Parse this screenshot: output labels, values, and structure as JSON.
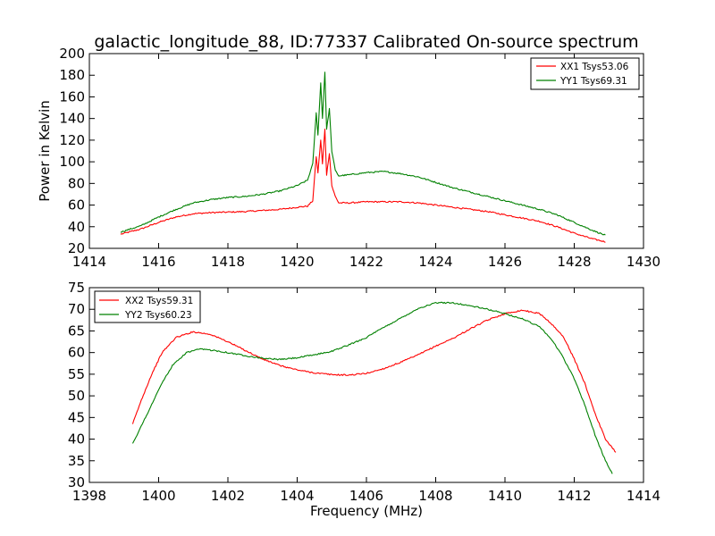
{
  "title": "galactic_longitude_88, ID:77337 Calibrated On-source spectrum",
  "chart_data": [
    {
      "type": "line",
      "ylabel": "Power in Kelvin",
      "xlabel": "",
      "xlim": [
        1414,
        1430
      ],
      "ylim": [
        20,
        200
      ],
      "xticks": [
        1414,
        1416,
        1418,
        1420,
        1422,
        1424,
        1426,
        1428,
        1430
      ],
      "yticks": [
        20,
        40,
        60,
        80,
        100,
        120,
        140,
        160,
        180,
        200
      ],
      "grid": false,
      "legend": "top-right",
      "series": [
        {
          "name": "XX1 Tsys53.06",
          "color": "#ff0000",
          "points": [
            [
              1414.9,
              33
            ],
            [
              1415.5,
              38
            ],
            [
              1416,
              44
            ],
            [
              1416.5,
              49
            ],
            [
              1417,
              52
            ],
            [
              1417.5,
              53
            ],
            [
              1418,
              53.5
            ],
            [
              1418.5,
              54
            ],
            [
              1419,
              55
            ],
            [
              1419.5,
              56
            ],
            [
              1420,
              58
            ],
            [
              1420.3,
              59
            ],
            [
              1420.45,
              64
            ],
            [
              1420.55,
              105
            ],
            [
              1420.6,
              90
            ],
            [
              1420.68,
              120
            ],
            [
              1420.73,
              98
            ],
            [
              1420.8,
              130
            ],
            [
              1420.85,
              88
            ],
            [
              1420.93,
              108
            ],
            [
              1421.0,
              78
            ],
            [
              1421.1,
              68
            ],
            [
              1421.2,
              62
            ],
            [
              1421.5,
              62
            ],
            [
              1422,
              63
            ],
            [
              1422.5,
              63
            ],
            [
              1423,
              63
            ],
            [
              1423.5,
              62
            ],
            [
              1424,
              60
            ],
            [
              1424.5,
              58
            ],
            [
              1425,
              56
            ],
            [
              1425.5,
              54
            ],
            [
              1426,
              51
            ],
            [
              1426.5,
              48
            ],
            [
              1427,
              45
            ],
            [
              1427.5,
              40
            ],
            [
              1428,
              34
            ],
            [
              1428.5,
              29
            ],
            [
              1428.9,
              26
            ]
          ]
        },
        {
          "name": "YY1 Tsys69.31",
          "color": "#008000",
          "points": [
            [
              1414.9,
              35
            ],
            [
              1415.5,
              41
            ],
            [
              1416,
              49
            ],
            [
              1416.5,
              56
            ],
            [
              1417,
              62
            ],
            [
              1417.5,
              65
            ],
            [
              1418,
              67
            ],
            [
              1418.5,
              68
            ],
            [
              1419,
              70
            ],
            [
              1419.5,
              73
            ],
            [
              1420,
              78
            ],
            [
              1420.3,
              83
            ],
            [
              1420.45,
              98
            ],
            [
              1420.55,
              145
            ],
            [
              1420.6,
              125
            ],
            [
              1420.68,
              173
            ],
            [
              1420.73,
              140
            ],
            [
              1420.8,
              183
            ],
            [
              1420.85,
              130
            ],
            [
              1420.93,
              149
            ],
            [
              1421.0,
              110
            ],
            [
              1421.1,
              92
            ],
            [
              1421.2,
              87
            ],
            [
              1421.5,
              88
            ],
            [
              1422,
              90
            ],
            [
              1422.5,
              91
            ],
            [
              1423,
              89
            ],
            [
              1423.5,
              86
            ],
            [
              1424,
              81
            ],
            [
              1424.5,
              76
            ],
            [
              1425,
              72
            ],
            [
              1425.5,
              68
            ],
            [
              1426,
              64
            ],
            [
              1426.5,
              60
            ],
            [
              1427,
              56
            ],
            [
              1427.5,
              51
            ],
            [
              1428,
              44
            ],
            [
              1428.5,
              37
            ],
            [
              1428.9,
              32
            ]
          ]
        }
      ]
    },
    {
      "type": "line",
      "ylabel": "",
      "xlabel": "Frequency (MHz)",
      "xlim": [
        1398,
        1414
      ],
      "ylim": [
        30,
        75
      ],
      "xticks": [
        1398,
        1400,
        1402,
        1404,
        1406,
        1408,
        1410,
        1412,
        1414
      ],
      "yticks": [
        30,
        35,
        40,
        45,
        50,
        55,
        60,
        65,
        70,
        75
      ],
      "grid": false,
      "legend": "top-left",
      "series": [
        {
          "name": "XX2 Tsys59.31",
          "color": "#ff0000",
          "points": [
            [
              1399.25,
              43.5
            ],
            [
              1399.5,
              49
            ],
            [
              1399.8,
              55
            ],
            [
              1400.1,
              60
            ],
            [
              1400.5,
              63.5
            ],
            [
              1401,
              64.8
            ],
            [
              1401.5,
              64.2
            ],
            [
              1402,
              62.5
            ],
            [
              1402.5,
              60.5
            ],
            [
              1403,
              58.5
            ],
            [
              1403.5,
              57
            ],
            [
              1404,
              56
            ],
            [
              1404.5,
              55.3
            ],
            [
              1405,
              54.9
            ],
            [
              1405.5,
              54.8
            ],
            [
              1406,
              55.2
            ],
            [
              1406.5,
              56.3
            ],
            [
              1407,
              57.8
            ],
            [
              1407.5,
              59.5
            ],
            [
              1408,
              61.5
            ],
            [
              1408.5,
              63.3
            ],
            [
              1409,
              65.5
            ],
            [
              1409.5,
              67.5
            ],
            [
              1410,
              69
            ],
            [
              1410.5,
              69.8
            ],
            [
              1411,
              69
            ],
            [
              1411.3,
              67
            ],
            [
              1411.7,
              63.5
            ],
            [
              1412,
              58.5
            ],
            [
              1412.3,
              53
            ],
            [
              1412.6,
              46
            ],
            [
              1412.9,
              40
            ],
            [
              1413.2,
              37
            ]
          ]
        },
        {
          "name": "YY2 Tsys60.23",
          "color": "#008000",
          "points": [
            [
              1399.25,
              39
            ],
            [
              1399.5,
              43
            ],
            [
              1399.8,
              48
            ],
            [
              1400.1,
              53
            ],
            [
              1400.4,
              57
            ],
            [
              1400.8,
              60
            ],
            [
              1401.2,
              60.8
            ],
            [
              1401.6,
              60.5
            ],
            [
              1402,
              60
            ],
            [
              1402.5,
              59.3
            ],
            [
              1403,
              58.7
            ],
            [
              1403.5,
              58.4
            ],
            [
              1404,
              58.8
            ],
            [
              1404.5,
              59.5
            ],
            [
              1405,
              60.3
            ],
            [
              1405.5,
              61.8
            ],
            [
              1406,
              63.5
            ],
            [
              1406.5,
              65.8
            ],
            [
              1407,
              68
            ],
            [
              1407.5,
              70.2
            ],
            [
              1408,
              71.5
            ],
            [
              1408.5,
              71.5
            ],
            [
              1409,
              70.8
            ],
            [
              1409.5,
              70
            ],
            [
              1410,
              69
            ],
            [
              1410.5,
              67.8
            ],
            [
              1411,
              66
            ],
            [
              1411.3,
              63.5
            ],
            [
              1411.6,
              60
            ],
            [
              1412,
              54
            ],
            [
              1412.3,
              48
            ],
            [
              1412.6,
              41
            ],
            [
              1412.9,
              35
            ],
            [
              1413.1,
              32
            ]
          ]
        }
      ]
    }
  ]
}
